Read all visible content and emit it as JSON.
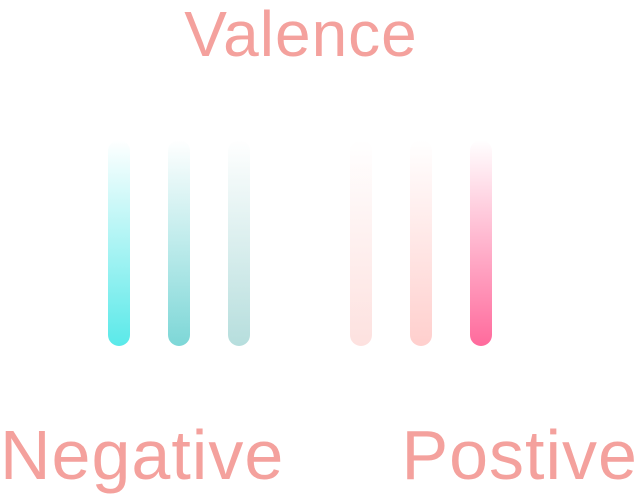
{
  "title": "Valence",
  "labels": {
    "negative": "Negative",
    "positive": "Postive"
  },
  "colors": {
    "text": "#f4a19d"
  },
  "bars": [
    {
      "group": "negative",
      "bottom_color": "#5ae9e9"
    },
    {
      "group": "negative",
      "bottom_color": "#7dd7d7"
    },
    {
      "group": "negative",
      "bottom_color": "#b6dedd"
    },
    {
      "group": "positive",
      "bottom_color": "#fde1df"
    },
    {
      "group": "positive",
      "bottom_color": "#ffcfcd"
    },
    {
      "group": "positive",
      "bottom_color": "#ff6a9c"
    }
  ]
}
